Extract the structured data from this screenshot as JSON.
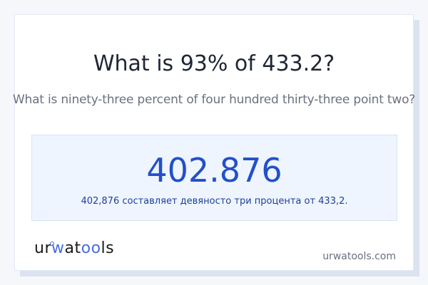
{
  "header": {
    "title": "What is 93% of 433.2?",
    "subtitle": "What is ninety-three percent of four hundred thirty-three point two?"
  },
  "result": {
    "value": "402.876",
    "sentence": "402,876 составляет девяносто три процента от 433,2."
  },
  "footer": {
    "logo": "urwatools",
    "site": "urwatools.com"
  },
  "colors": {
    "accent": "#2350c8",
    "result_bg": "#eef5ff",
    "background": "#f5f7fb"
  }
}
